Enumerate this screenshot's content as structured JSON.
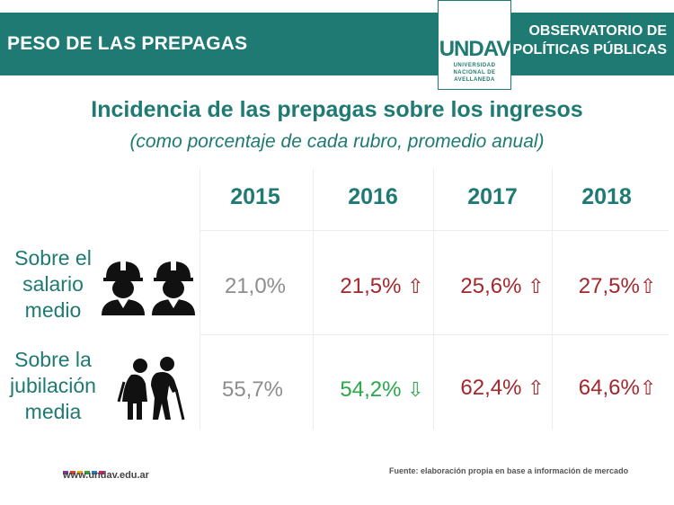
{
  "header": {
    "title": "PESO DE LAS PREPAGAS",
    "logo_mark": "UNDAV",
    "logo_sub_1": "UNIVERSIDAD",
    "logo_sub_2": "NACIONAL DE",
    "logo_sub_3": "AVELLANEDA",
    "org_line_1": "OBSERVATORIO DE",
    "org_line_2": "POLÍTICAS PÚBLICAS"
  },
  "title": "Incidencia de las prepagas sobre los ingresos",
  "subtitle": "(como porcentaje de cada rubro, promedio anual)",
  "table": {
    "years": [
      "2015",
      "2016",
      "2017",
      "2018"
    ],
    "rows": [
      {
        "label_1": "Sobre el",
        "label_2": "salario",
        "label_3": "medio",
        "icon": "workers-icon",
        "cells": [
          {
            "value": "21,0%",
            "arrow": ""
          },
          {
            "value": "21,5%",
            "arrow": "⇧"
          },
          {
            "value": "25,6%",
            "arrow": "⇧"
          },
          {
            "value": "27,5%",
            "arrow": "⇧"
          }
        ]
      },
      {
        "label_1": "Sobre la",
        "label_2": "jubilación",
        "label_3": "media",
        "icon": "elderly-couple-icon",
        "cells": [
          {
            "value": "55,7%",
            "arrow": ""
          },
          {
            "value": "54,2%",
            "arrow": "⇩"
          },
          {
            "value": "62,4%",
            "arrow": "⇧"
          },
          {
            "value": "64,6%",
            "arrow": "⇧"
          }
        ]
      }
    ]
  },
  "footer": {
    "url": "www.undav.edu.ar",
    "source": "Fuente: elaboración propia en base a información de mercado"
  },
  "colors": {
    "brand": "#1e7a72",
    "increase": "#a3272c",
    "decrease": "#2aa84a",
    "neutral": "#8d8d8d"
  }
}
